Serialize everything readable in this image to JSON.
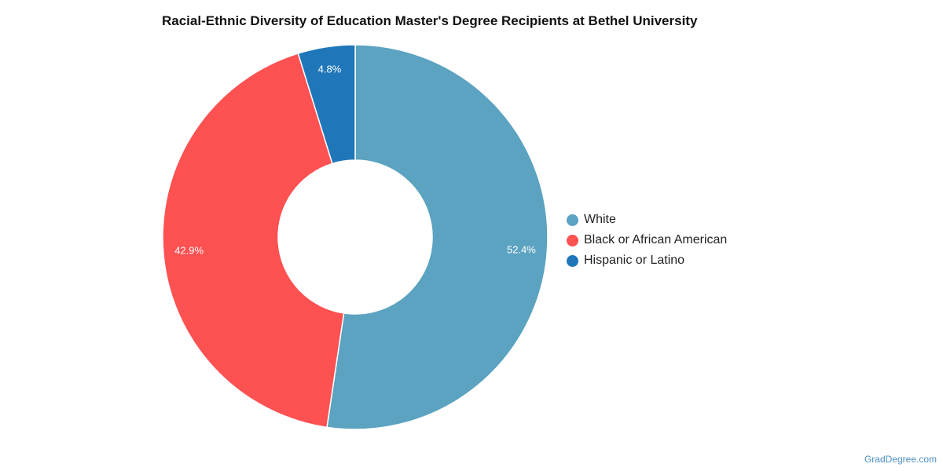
{
  "chart_data": {
    "type": "pie",
    "title": "Racial-Ethnic Diversity of Education Master's Degree Recipients at Bethel University",
    "donut": true,
    "legend_position": "right",
    "slices": [
      {
        "label": "White",
        "value": 52.4,
        "value_label": "52.4%",
        "color": "#5ba3c0"
      },
      {
        "label": "Black or African American",
        "value": 42.9,
        "value_label": "42.9%",
        "color": "#fe5152"
      },
      {
        "label": "Hispanic or Latino",
        "value": 4.8,
        "value_label": "4.8%",
        "color": "#1f77ba"
      }
    ]
  },
  "watermark": "GradDegree.com"
}
